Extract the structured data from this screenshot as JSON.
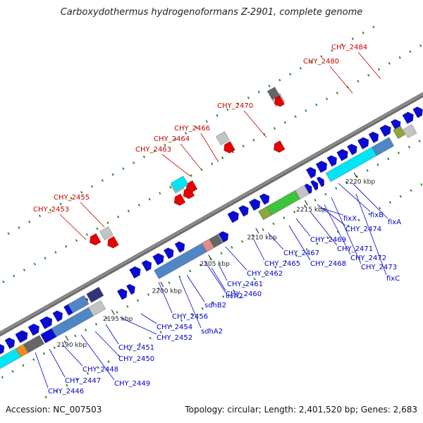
{
  "title": "Carboxydothermus hydrogenoformans Z-2901, complete genome",
  "footer": {
    "accession": "Accession: NC_007503",
    "summary": "Topology: circular; Length: 2,401,520 bp; Genes: 2,683"
  },
  "colors": {
    "backbone": "#8c8c8c",
    "forward_gene": "#0a0ad6",
    "reverse_gene": "#e80000",
    "label_forward": "#0000cc",
    "label_reverse": "#cc0000",
    "tick_dot": "#2e8b2e",
    "kbp_tick": "#111111",
    "cyan": "#00e5f5",
    "green": "#3cc43c",
    "olive": "#8aa63c",
    "steel": "#4f86c6",
    "light_gray": "#c4c4c4",
    "dark_gray": "#666666",
    "orange": "#f08c1e",
    "salmon": "#e88a8a",
    "navy": "#34347a"
  },
  "kbp_labels": [
    "2190 kbp",
    "2195 kbp",
    "2200 kbp",
    "2205 kbp",
    "2210 kbp",
    "2215 kbp",
    "2220 kbp"
  ],
  "red_labels": [
    "CHY_2453",
    "CHY_2455",
    "CHY_2463",
    "CHY_2464",
    "CHY_2466",
    "CHY_2470",
    "CHY_2480",
    "CHY_2484"
  ],
  "blue_labels": [
    "CHY_2446",
    "CHY_2447",
    "CHY_2448",
    "CHY_2449",
    "CHY_2450",
    "CHY_2451",
    "CHY_2452",
    "CHY_2454",
    "CHY_2456",
    "sdhA2",
    "sdhB2",
    "ilvA2",
    "CHY_2460",
    "CHY_2461",
    "CHY_2462",
    "CHY_2465",
    "CHY_2467",
    "CHY_2468",
    "CHY_2469",
    "CHY_2471",
    "CHY_2472",
    "CHY_2473",
    "CHY_2474",
    "fixX",
    "fixB",
    "fixA",
    "fixC"
  ]
}
